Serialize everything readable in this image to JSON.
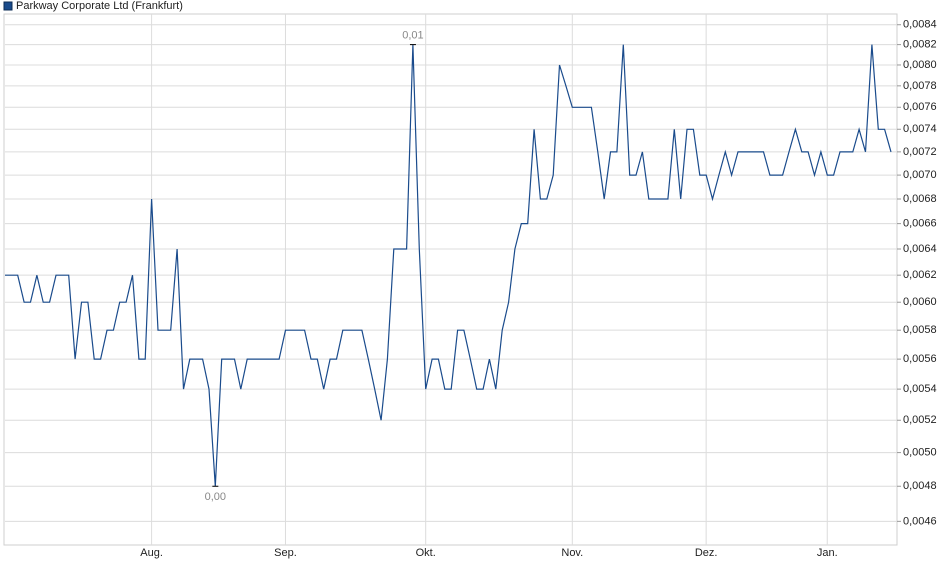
{
  "chart_data": {
    "type": "line",
    "log_scale": true,
    "grid": true,
    "categories": [
      null,
      null,
      null,
      null,
      null,
      null,
      null,
      null,
      null,
      null,
      null,
      null,
      null,
      null,
      null,
      null,
      null,
      null,
      null,
      null,
      null,
      null,
      null,
      "Aug.",
      null,
      null,
      null,
      null,
      null,
      null,
      null,
      null,
      null,
      null,
      null,
      null,
      null,
      null,
      null,
      null,
      null,
      null,
      null,
      null,
      "Sep.",
      null,
      null,
      null,
      null,
      null,
      null,
      null,
      null,
      null,
      null,
      null,
      null,
      null,
      null,
      null,
      null,
      null,
      null,
      null,
      null,
      null,
      "Okt.",
      null,
      null,
      null,
      null,
      null,
      null,
      null,
      null,
      null,
      null,
      null,
      null,
      null,
      null,
      null,
      null,
      null,
      null,
      null,
      null,
      null,
      null,
      "Nov.",
      null,
      null,
      null,
      null,
      null,
      null,
      null,
      null,
      null,
      null,
      null,
      null,
      null,
      null,
      null,
      null,
      null,
      null,
      null,
      null,
      "Dez.",
      null,
      null,
      null,
      null,
      null,
      null,
      null,
      null,
      null,
      null,
      null,
      null,
      null,
      null,
      null,
      null,
      null,
      null,
      "Jan.",
      null,
      null,
      null,
      null,
      null,
      null,
      null,
      null,
      null,
      null
    ],
    "series": [
      {
        "name": "Parkway Corporate Ltd (Frankfurt)",
        "color": "#1a4b8c",
        "values": [
          0.0062,
          0.0062,
          0.0062,
          0.006,
          0.006,
          0.0062,
          0.006,
          0.006,
          0.0062,
          0.0062,
          0.0062,
          0.0056,
          0.006,
          0.006,
          0.0056,
          0.0056,
          0.0058,
          0.0058,
          0.006,
          0.006,
          0.0062,
          0.0056,
          0.0056,
          0.0068,
          0.0058,
          0.0058,
          0.0058,
          0.0064,
          0.0054,
          0.0056,
          0.0056,
          0.0056,
          0.0054,
          0.0048,
          0.0056,
          0.0056,
          0.0056,
          0.0054,
          0.0056,
          0.0056,
          0.0056,
          0.0056,
          0.0056,
          0.0056,
          0.0058,
          0.0058,
          0.0058,
          0.0058,
          0.0056,
          0.0056,
          0.0054,
          0.0056,
          0.0056,
          0.0058,
          0.0058,
          0.0058,
          0.0058,
          0.0056,
          0.0054,
          0.0052,
          0.0056,
          0.0064,
          0.0064,
          0.0064,
          0.0082,
          0.0064,
          0.0054,
          0.0056,
          0.0056,
          0.0054,
          0.0054,
          0.0058,
          0.0058,
          0.0056,
          0.0054,
          0.0054,
          0.0056,
          0.0054,
          0.0058,
          0.006,
          0.0064,
          0.0066,
          0.0066,
          0.0074,
          0.0068,
          0.0068,
          0.007,
          0.008,
          0.0078,
          0.0076,
          0.0076,
          0.0076,
          0.0076,
          0.0072,
          0.0068,
          0.0072,
          0.0072,
          0.0082,
          0.007,
          0.007,
          0.0072,
          0.0068,
          0.0068,
          0.0068,
          0.0068,
          0.0074,
          0.0068,
          0.0074,
          0.0074,
          0.007,
          0.007,
          0.0068,
          0.007,
          0.0072,
          0.007,
          0.0072,
          0.0072,
          0.0072,
          0.0072,
          0.0072,
          0.007,
          0.007,
          0.007,
          0.0072,
          0.0074,
          0.0072,
          0.0072,
          0.007,
          0.0072,
          0.007,
          0.007,
          0.0072,
          0.0072,
          0.0072,
          0.0074,
          0.0072,
          0.0082,
          0.0074,
          0.0074,
          0.0072
        ],
        "value_labels": [
          null,
          null,
          null,
          null,
          null,
          null,
          null,
          null,
          null,
          null,
          null,
          null,
          null,
          null,
          null,
          null,
          null,
          null,
          null,
          null,
          null,
          null,
          null,
          null,
          null,
          null,
          null,
          null,
          null,
          null,
          null,
          null,
          null,
          "0,00",
          null,
          null,
          null,
          null,
          null,
          null,
          null,
          null,
          null,
          null,
          null,
          null,
          null,
          null,
          null,
          null,
          null,
          null,
          null,
          null,
          null,
          null,
          null,
          null,
          null,
          null,
          null,
          null,
          null,
          null,
          "0,01",
          null,
          null,
          null,
          null,
          null,
          null,
          null,
          null,
          null,
          null,
          null,
          null,
          null,
          null,
          null,
          null,
          null,
          null,
          null,
          null,
          null,
          null,
          null,
          null,
          null,
          null,
          null,
          null,
          null,
          null,
          null,
          null,
          null,
          null,
          null,
          null,
          null,
          null,
          null,
          null,
          null,
          null,
          null,
          null,
          null,
          null,
          null,
          null,
          null,
          null,
          null,
          null,
          null,
          null,
          null,
          null,
          null,
          null,
          null,
          null,
          null,
          null,
          null,
          null,
          null,
          null,
          null,
          null,
          null,
          null,
          null,
          null,
          null,
          null,
          null
        ]
      }
    ],
    "ylim": [
      0.00447,
      0.00851
    ],
    "yticks": [
      {
        "value": 0.0046,
        "label": "0,0046"
      },
      {
        "value": 0.0048,
        "label": "0,0048"
      },
      {
        "value": 0.005,
        "label": "0,0050"
      },
      {
        "value": 0.0052,
        "label": "0,0052"
      },
      {
        "value": 0.0054,
        "label": "0,0054"
      },
      {
        "value": 0.0056,
        "label": "0,0056"
      },
      {
        "value": 0.0058,
        "label": "0,0058"
      },
      {
        "value": 0.006,
        "label": "0,0060"
      },
      {
        "value": 0.0062,
        "label": "0,0062"
      },
      {
        "value": 0.0064,
        "label": "0,0064"
      },
      {
        "value": 0.0066,
        "label": "0,0066"
      },
      {
        "value": 0.0068,
        "label": "0,0068"
      },
      {
        "value": 0.007,
        "label": "0,0070"
      },
      {
        "value": 0.0072,
        "label": "0,0072"
      },
      {
        "value": 0.0074,
        "label": "0,0074"
      },
      {
        "value": 0.0076,
        "label": "0,0076"
      },
      {
        "value": 0.0078,
        "label": "0,0078"
      },
      {
        "value": 0.008,
        "label": "0,0080"
      },
      {
        "value": 0.0082,
        "label": "0,0082"
      },
      {
        "value": 0.0084,
        "label": "0,0084"
      }
    ]
  }
}
